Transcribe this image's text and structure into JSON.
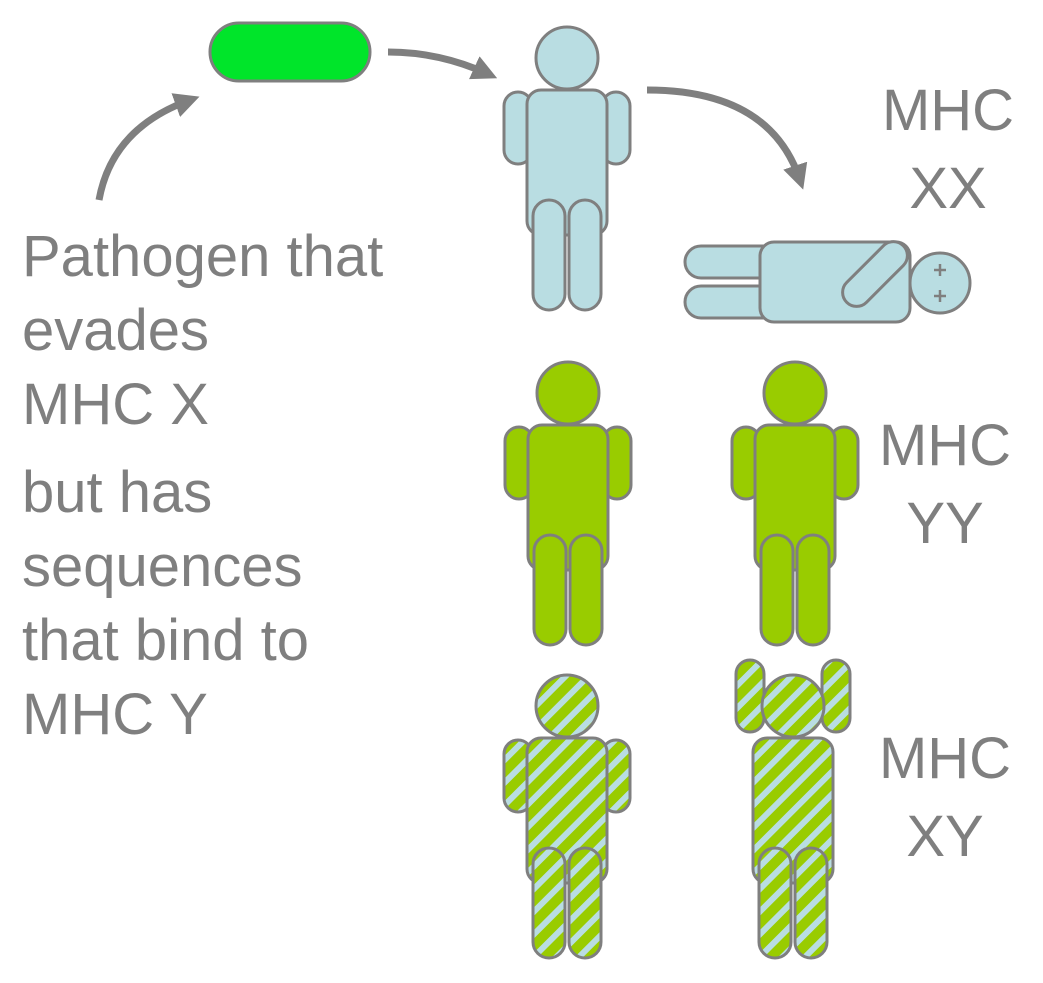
{
  "description_lines": [
    "Pathogen that",
    "evades",
    "MHC X",
    "but has",
    "sequences",
    "that bind to",
    "MHC Y"
  ],
  "groups": [
    {
      "line1": "MHC",
      "line2": "XX",
      "fill": "light-blue",
      "outcome": "one standing, one lying dead"
    },
    {
      "line1": "MHC",
      "line2": "YY",
      "fill": "green"
    },
    {
      "line1": "MHC",
      "line2": "XY",
      "fill": "green-blue-stripes"
    }
  ],
  "colors": {
    "text": "#7f7f7f",
    "outline": "#7f7f7f",
    "pathogen": "#00e52a",
    "light_blue": "#b9dde2",
    "green": "#99cc00",
    "arrow": "#7f7f7f"
  }
}
